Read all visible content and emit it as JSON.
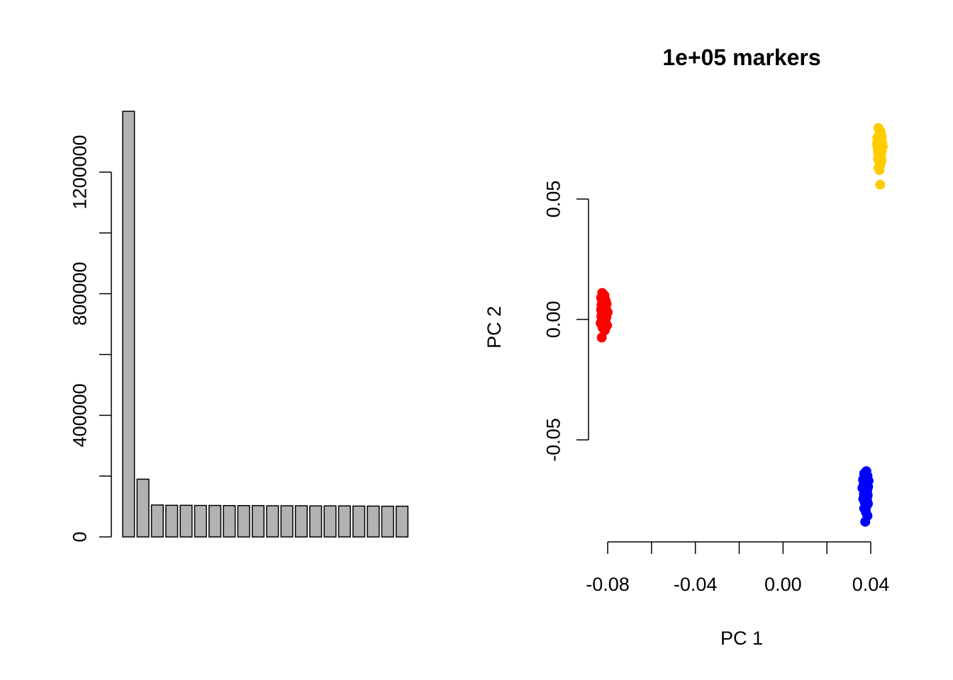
{
  "chart_data": [
    {
      "type": "bar",
      "title": "",
      "xlabel": "",
      "ylabel": "",
      "ylim": [
        0,
        1400000
      ],
      "yticks": [
        0,
        400000,
        800000,
        1200000
      ],
      "ytick_labels": [
        "0",
        "400000",
        "800000",
        "1200000"
      ],
      "bar_color": "#B2B2B2",
      "values": [
        1400000,
        190000,
        105000,
        104000,
        104000,
        103500,
        103500,
        103000,
        103000,
        103000,
        102500,
        102500,
        102500,
        102000,
        102000,
        102000,
        101500,
        101500,
        101000,
        101000
      ]
    },
    {
      "type": "scatter",
      "title": "1e+05 markers",
      "xlabel": "PC 1",
      "ylabel": "PC 2",
      "xticks": [
        -0.08,
        -0.06,
        -0.04,
        -0.02,
        0.0,
        0.02,
        0.04
      ],
      "xtick_labels": [
        "-0.08",
        "",
        "-0.04",
        "",
        "0.00",
        "",
        "0.04"
      ],
      "yticks": [
        -0.05,
        0.0,
        0.05
      ],
      "ytick_labels": [
        "-0.05",
        "0.00",
        "0.05"
      ],
      "series": [
        {
          "color": "#FF0000",
          "x": [
            -0.0825,
            -0.0815,
            -0.083,
            -0.082,
            -0.081,
            -0.0825,
            -0.0818,
            -0.0805,
            -0.0828,
            -0.0812,
            -0.0822,
            -0.0808,
            -0.083,
            -0.0815,
            -0.08,
            -0.0826,
            -0.0818,
            -0.0812,
            -0.0829,
            -0.0806,
            -0.0821,
            -0.0814,
            -0.0824,
            -0.081,
            -0.0832,
            -0.0817,
            -0.0803,
            -0.0823,
            -0.0813,
            -0.0827
          ],
          "y": [
            0.011,
            0.01,
            0.009,
            0.0085,
            0.008,
            0.0075,
            0.007,
            0.0065,
            0.006,
            0.0055,
            0.005,
            0.0045,
            0.004,
            0.0035,
            0.003,
            0.0028,
            0.0022,
            0.0018,
            0.0012,
            0.001,
            0.0005,
            0.0,
            -0.0005,
            -0.001,
            -0.0015,
            -0.002,
            -0.0025,
            -0.0035,
            -0.0045,
            -0.0075
          ]
        },
        {
          "color": "#FFCC00",
          "x": [
            0.0435,
            0.0445,
            0.044,
            0.045,
            0.043,
            0.0442,
            0.0448,
            0.0436,
            0.0452,
            0.0428,
            0.0444,
            0.0438,
            0.0455,
            0.0432,
            0.0446,
            0.044,
            0.045,
            0.0434,
            0.0443,
            0.0437,
            0.0447,
            0.0441,
            0.0433,
            0.0449,
            0.0439,
            0.0445,
            0.0442,
            0.0436,
            0.044,
            0.0443
          ],
          "y": [
            0.0795,
            0.078,
            0.077,
            0.076,
            0.0755,
            0.075,
            0.0745,
            0.074,
            0.0735,
            0.073,
            0.0725,
            0.072,
            0.0718,
            0.0712,
            0.0708,
            0.0702,
            0.0698,
            0.0692,
            0.0688,
            0.0682,
            0.0678,
            0.0672,
            0.0668,
            0.066,
            0.0655,
            0.0648,
            0.064,
            0.063,
            0.062,
            0.056
          ]
        },
        {
          "color": "#0000FF",
          "x": [
            0.038,
            0.037,
            0.0385,
            0.0375,
            0.0365,
            0.039,
            0.0372,
            0.0382,
            0.0368,
            0.0378,
            0.0388,
            0.0362,
            0.0376,
            0.0384,
            0.0371,
            0.038,
            0.0369,
            0.0386,
            0.0374,
            0.0379,
            0.0366,
            0.0383,
            0.0377,
            0.0373,
            0.0387,
            0.0381,
            0.037,
            0.0378,
            0.0385,
            0.0375
          ],
          "y": [
            -0.063,
            -0.064,
            -0.065,
            -0.066,
            -0.0665,
            -0.067,
            -0.0675,
            -0.068,
            -0.0685,
            -0.069,
            -0.0695,
            -0.07,
            -0.0705,
            -0.071,
            -0.0715,
            -0.072,
            -0.0725,
            -0.073,
            -0.0735,
            -0.074,
            -0.0745,
            -0.075,
            -0.0755,
            -0.076,
            -0.0765,
            -0.0775,
            -0.0785,
            -0.08,
            -0.0815,
            -0.084
          ]
        }
      ]
    }
  ]
}
